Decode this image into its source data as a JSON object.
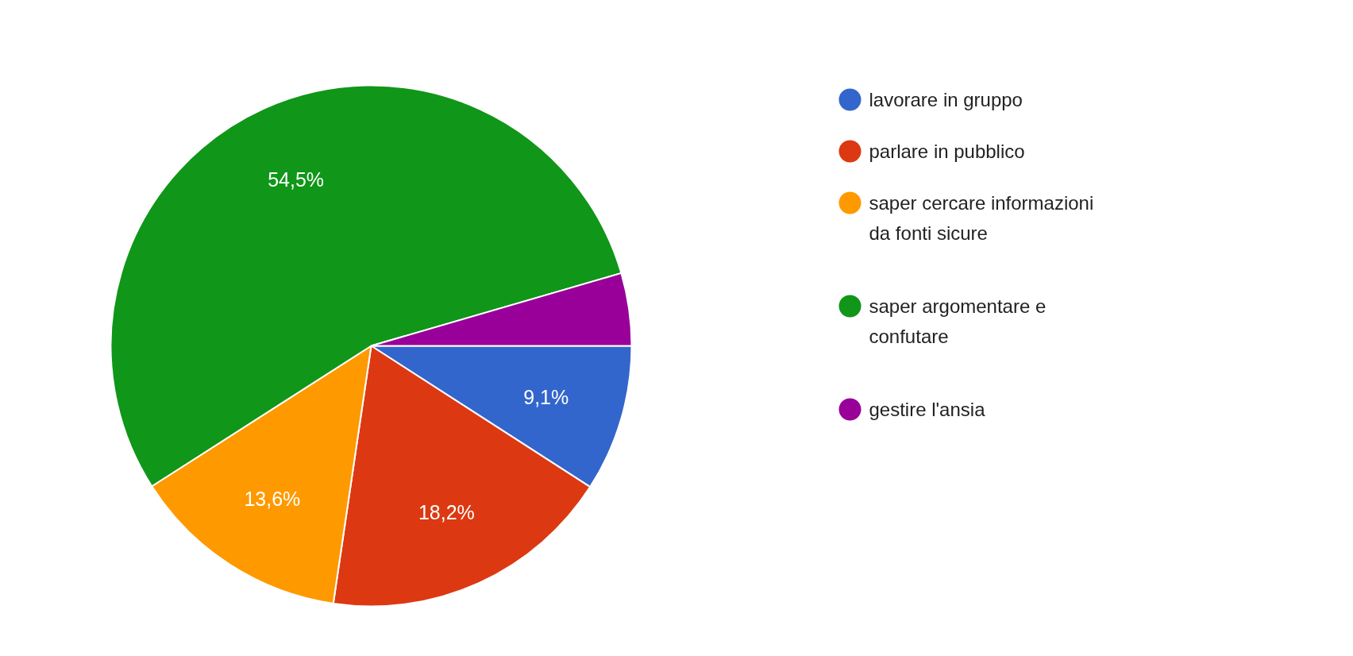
{
  "chart_data": {
    "type": "pie",
    "categories": [
      "lavorare in gruppo",
      "parlare in pubblico",
      "saper cercare informazioni da fonti sicure",
      "saper argomentare e confutare",
      "gestire l'ansia"
    ],
    "values": [
      9.1,
      18.2,
      13.6,
      54.5,
      4.5
    ],
    "colors": [
      "#3366cc",
      "#dc3912",
      "#ff9900",
      "#109618",
      "#990099"
    ],
    "value_labels": [
      "9,1%",
      "18,2%",
      "13,6%",
      "54,5%",
      null
    ],
    "legend": "right"
  }
}
